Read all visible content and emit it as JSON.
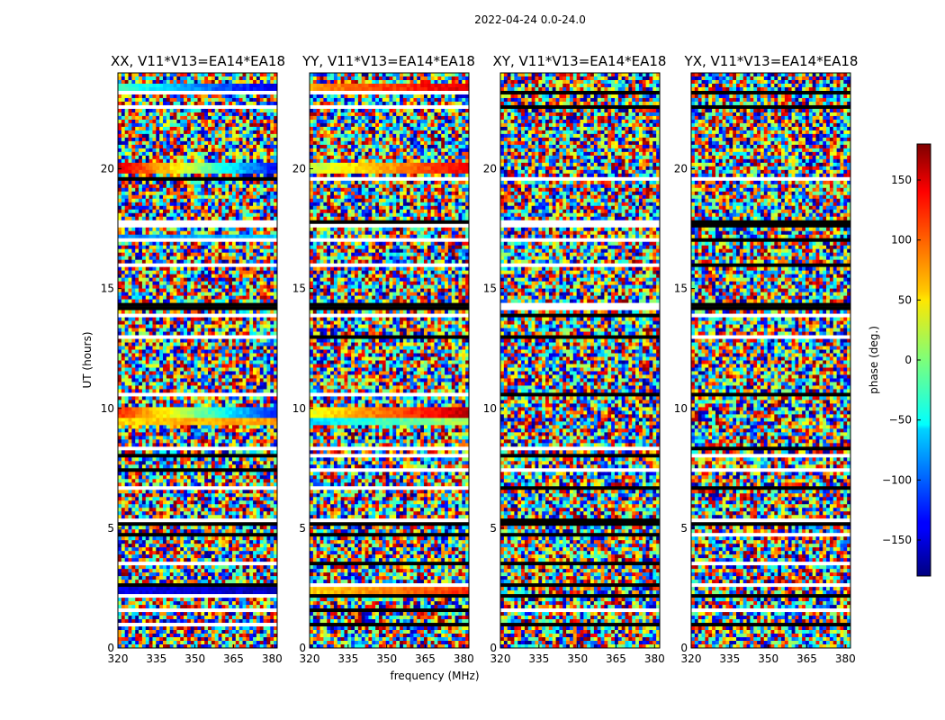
{
  "figure_title": "2022-04-24 0.0-24.0",
  "chart_data": [
    {
      "type": "heatmap",
      "title": "XX, V11*V13=EA14*EA18",
      "xlabel": "frequency (MHz)",
      "ylabel": "UT (hours)",
      "xlim": [
        320,
        382
      ],
      "ylim": [
        0,
        24
      ],
      "xticks": [
        "320",
        "335",
        "350",
        "365",
        "380"
      ],
      "yticks": [
        "0",
        "5",
        "10",
        "15",
        "20"
      ],
      "coherent_bands": [
        {
          "y": 23.3,
          "from": -20,
          "to": -150
        },
        {
          "y": 20.0,
          "from": 150,
          "to": -130
        },
        {
          "y": 17.1,
          "from": -90,
          "to": -60
        },
        {
          "y": 9.8,
          "from": 120,
          "to": -120
        },
        {
          "y": 9.5,
          "from": 60,
          "to": 80
        },
        {
          "y": 2.4,
          "from": -140,
          "to": -160
        }
      ]
    },
    {
      "type": "heatmap",
      "title": "YY, V11*V13=EA14*EA18",
      "xlabel": "frequency (MHz)",
      "ylabel": "",
      "xlim": [
        320,
        382
      ],
      "ylim": [
        0,
        24
      ],
      "xticks": [
        "320",
        "335",
        "350",
        "365",
        "380"
      ],
      "yticks": [
        "0",
        "5",
        "10",
        "15",
        "20"
      ],
      "coherent_bands": [
        {
          "y": 23.3,
          "from": 80,
          "to": 150
        },
        {
          "y": 20.0,
          "from": 20,
          "to": 140
        },
        {
          "y": 9.8,
          "from": 40,
          "to": 160
        },
        {
          "y": 9.5,
          "from": -60,
          "to": 20
        },
        {
          "y": 2.4,
          "from": 60,
          "to": 120
        }
      ]
    },
    {
      "type": "heatmap",
      "title": "XY, V11*V13=EA14*EA18",
      "xlabel": "",
      "ylabel": "",
      "xlim": [
        320,
        382
      ],
      "ylim": [
        0,
        24
      ],
      "xticks": [
        "320",
        "335",
        "350",
        "365",
        "380"
      ],
      "yticks": [
        "0",
        "5",
        "10",
        "15",
        "20"
      ],
      "coherent_bands": []
    },
    {
      "type": "heatmap",
      "title": "YX, V11*V13=EA14*EA18",
      "xlabel": "",
      "ylabel": "",
      "xlim": [
        320,
        382
      ],
      "ylim": [
        0,
        24
      ],
      "xticks": [
        "320",
        "335",
        "350",
        "365",
        "380"
      ],
      "yticks": [
        "0",
        "5",
        "10",
        "15",
        "20"
      ],
      "coherent_bands": []
    }
  ],
  "colorbar": {
    "label": "phase (deg.)",
    "range": [
      -180,
      180
    ],
    "ticks": [
      "150",
      "100",
      "50",
      "0",
      "−50",
      "−100",
      "−150"
    ],
    "tick_values": [
      150,
      100,
      50,
      0,
      -50,
      -100,
      -150
    ]
  },
  "flagged_ut_rows": [
    0.95,
    1.58,
    1.63,
    2.15,
    2.68,
    3.3,
    3.55,
    4.78,
    5.18,
    5.32,
    6.7,
    7.4,
    7.65,
    8.0,
    8.35,
    8.7,
    10.55,
    12.95,
    13.85,
    14.1,
    14.15,
    14.2,
    14.3,
    15.3,
    16.0,
    17.0,
    17.6,
    17.8,
    18.6,
    19.55,
    21.6,
    21.9,
    22.55,
    23.15,
    23.7
  ]
}
